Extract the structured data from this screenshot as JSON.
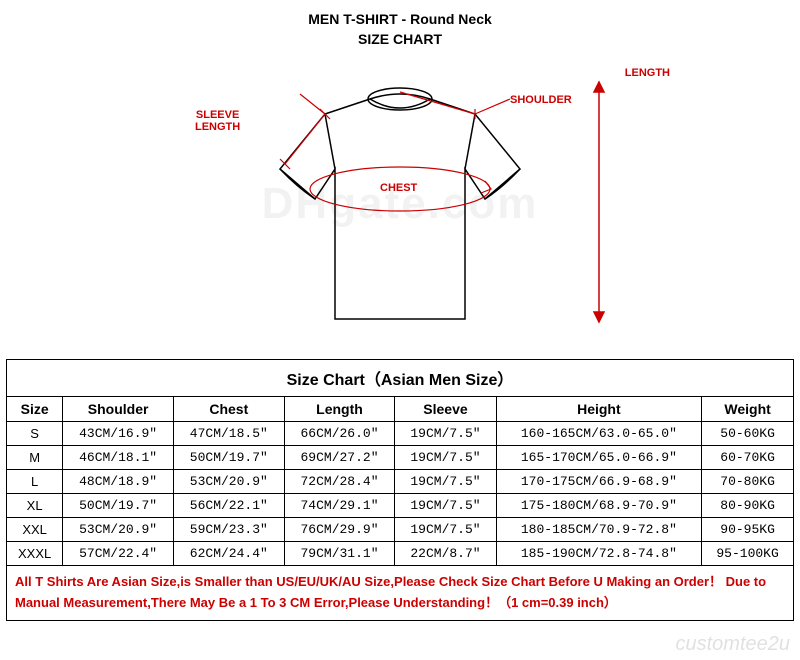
{
  "header": {
    "line1": "MEN T-SHIRT - Round Neck",
    "line2": "SIZE CHART"
  },
  "callouts": {
    "sleeve_length": "SLEEVE\nLENGTH",
    "shoulder": "SHOULDER",
    "chest": "CHEST",
    "length": "LENGTH"
  },
  "diagram": {
    "stroke_color": "#000000",
    "callout_color": "#cc0000",
    "line_width": 1.5
  },
  "table": {
    "title": "Size Chart（Asian Men Size）",
    "columns": [
      "Size",
      "Shoulder",
      "Chest",
      "Length",
      "Sleeve",
      "Height",
      "Weight"
    ],
    "rows": [
      [
        "S",
        "43CM/16.9″",
        "47CM/18.5″",
        "66CM/26.0″",
        "19CM/7.5″",
        "160-165CM/63.0-65.0″",
        "50-60KG"
      ],
      [
        "M",
        "46CM/18.1″",
        "50CM/19.7″",
        "69CM/27.2″",
        "19CM/7.5″",
        "165-170CM/65.0-66.9″",
        "60-70KG"
      ],
      [
        "L",
        "48CM/18.9″",
        "53CM/20.9″",
        "72CM/28.4″",
        "19CM/7.5″",
        "170-175CM/66.9-68.9″",
        "70-80KG"
      ],
      [
        "XL",
        "50CM/19.7″",
        "56CM/22.1″",
        "74CM/29.1″",
        "19CM/7.5″",
        "175-180CM/68.9-70.9″",
        "80-90KG"
      ],
      [
        "XXL",
        "53CM/20.9″",
        "59CM/23.3″",
        "76CM/29.9″",
        "19CM/7.5″",
        "180-185CM/70.9-72.8″",
        "90-95KG"
      ],
      [
        "XXXL",
        "57CM/22.4″",
        "62CM/24.4″",
        "79CM/31.1″",
        "22CM/8.7″",
        "185-190CM/72.8-74.8″",
        "95-100KG"
      ]
    ],
    "note": "All T Shirts Are Asian Size,is Smaller than US/EU/UK/AU Size,Please Check Size Chart Before U Making an Order！ Due to Manual Measurement,There May Be a 1 To 3 CM Error,Please Understanding！（1 cm=0.39 inch）",
    "border_color": "#000000",
    "header_bg": "#ffffff",
    "cell_bg": "#ffffff",
    "note_color": "#cc0000",
    "font_size_header": 14,
    "font_size_cell": 13,
    "font_size_title": 16
  },
  "watermark": {
    "center": "DHgate.com",
    "corner": "customtee2u"
  }
}
